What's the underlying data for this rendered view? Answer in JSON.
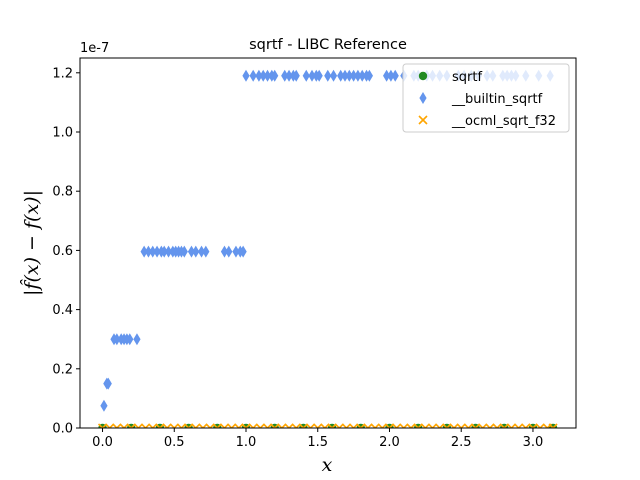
{
  "chart_data": {
    "type": "scatter",
    "title": "sqrtf - LIBC Reference",
    "xlabel": "x",
    "ylabel": "|f̂(x) − f(x)|",
    "y_offset_label": "1e-7",
    "xlim": [
      -0.157,
      3.3
    ],
    "ylim": [
      0,
      1.25
    ],
    "xticks": [
      0.0,
      0.5,
      1.0,
      1.5,
      2.0,
      2.5,
      3.0
    ],
    "xtick_labels": [
      "0.0",
      "0.5",
      "1.0",
      "1.5",
      "2.0",
      "2.5",
      "3.0"
    ],
    "yticks": [
      0.0,
      0.2,
      0.4,
      0.6,
      0.8,
      1.0,
      1.2
    ],
    "ytick_labels": [
      "0.0",
      "0.2",
      "0.4",
      "0.6",
      "0.8",
      "1.0",
      "1.2"
    ],
    "grid": false,
    "legend_position": "top-right",
    "series": [
      {
        "name": "sqrtf",
        "marker": "circle",
        "color": "#228b22",
        "x": [
          0.0,
          0.2,
          0.4,
          0.6,
          0.8,
          1.0,
          1.2,
          1.4,
          1.6,
          1.8,
          2.0,
          2.2,
          2.4,
          2.6,
          2.8,
          3.0,
          3.14
        ],
        "y": [
          0,
          0,
          0,
          0,
          0,
          0,
          0,
          0,
          0,
          0,
          0,
          0,
          0,
          0,
          0,
          0,
          0
        ]
      },
      {
        "name": "__builtin_sqrtf",
        "marker": "thin_diamond",
        "color": "#6495ed",
        "x": [
          0.01,
          0.03,
          0.04,
          0.08,
          0.1,
          0.13,
          0.15,
          0.17,
          0.19,
          0.24,
          0.29,
          0.32,
          0.35,
          0.38,
          0.41,
          0.43,
          0.46,
          0.49,
          0.51,
          0.53,
          0.55,
          0.57,
          0.62,
          0.65,
          0.69,
          0.72,
          0.85,
          0.88,
          0.93,
          0.96,
          0.98,
          1.0,
          1.05,
          1.09,
          1.12,
          1.15,
          1.18,
          1.2,
          1.27,
          1.3,
          1.33,
          1.35,
          1.42,
          1.46,
          1.49,
          1.51,
          1.57,
          1.61,
          1.66,
          1.69,
          1.72,
          1.75,
          1.78,
          1.81,
          1.84,
          1.86,
          1.98,
          2.01,
          2.04,
          2.1,
          2.17,
          2.2,
          2.26,
          2.3,
          2.35,
          2.4,
          2.48,
          2.52,
          2.57,
          2.62,
          2.68,
          2.72,
          2.79,
          2.82,
          2.85,
          2.88,
          2.95,
          3.04,
          3.12
        ],
        "y": [
          0.075,
          0.15,
          0.15,
          0.3,
          0.3,
          0.3,
          0.3,
          0.3,
          0.3,
          0.3,
          0.596,
          0.596,
          0.596,
          0.596,
          0.596,
          0.596,
          0.596,
          0.596,
          0.596,
          0.596,
          0.596,
          0.596,
          0.596,
          0.596,
          0.596,
          0.596,
          0.596,
          0.596,
          0.596,
          0.596,
          0.596,
          1.19,
          1.19,
          1.19,
          1.19,
          1.19,
          1.19,
          1.19,
          1.19,
          1.19,
          1.19,
          1.19,
          1.19,
          1.19,
          1.19,
          1.19,
          1.19,
          1.19,
          1.19,
          1.19,
          1.19,
          1.19,
          1.19,
          1.19,
          1.19,
          1.19,
          1.19,
          1.19,
          1.19,
          1.19,
          1.19,
          1.19,
          1.19,
          1.19,
          1.19,
          1.19,
          1.19,
          1.19,
          1.19,
          1.19,
          1.19,
          1.19,
          1.19,
          1.19,
          1.19,
          1.19,
          1.19,
          1.19,
          1.19
        ]
      },
      {
        "name": "__ocml_sqrt_f32",
        "marker": "x",
        "color": "#ffa500",
        "x": [
          0.0,
          0.05,
          0.1,
          0.15,
          0.2,
          0.25,
          0.3,
          0.35,
          0.4,
          0.45,
          0.5,
          0.55,
          0.6,
          0.65,
          0.7,
          0.75,
          0.8,
          0.85,
          0.9,
          0.95,
          1.0,
          1.05,
          1.1,
          1.15,
          1.2,
          1.25,
          1.3,
          1.35,
          1.4,
          1.45,
          1.5,
          1.55,
          1.6,
          1.65,
          1.7,
          1.75,
          1.8,
          1.85,
          1.9,
          1.95,
          2.0,
          2.05,
          2.1,
          2.15,
          2.2,
          2.25,
          2.3,
          2.35,
          2.4,
          2.45,
          2.5,
          2.55,
          2.6,
          2.65,
          2.7,
          2.75,
          2.8,
          2.85,
          2.9,
          2.95,
          3.0,
          3.05,
          3.1,
          3.14
        ],
        "y": [
          0,
          0,
          0,
          0,
          0,
          0,
          0,
          0,
          0,
          0,
          0,
          0,
          0,
          0,
          0,
          0,
          0,
          0,
          0,
          0,
          0,
          0,
          0,
          0,
          0,
          0,
          0,
          0,
          0,
          0,
          0,
          0,
          0,
          0,
          0,
          0,
          0,
          0,
          0,
          0,
          0,
          0,
          0,
          0,
          0,
          0,
          0,
          0,
          0,
          0,
          0,
          0,
          0,
          0,
          0,
          0,
          0,
          0,
          0,
          0,
          0,
          0,
          0,
          0
        ]
      }
    ]
  }
}
